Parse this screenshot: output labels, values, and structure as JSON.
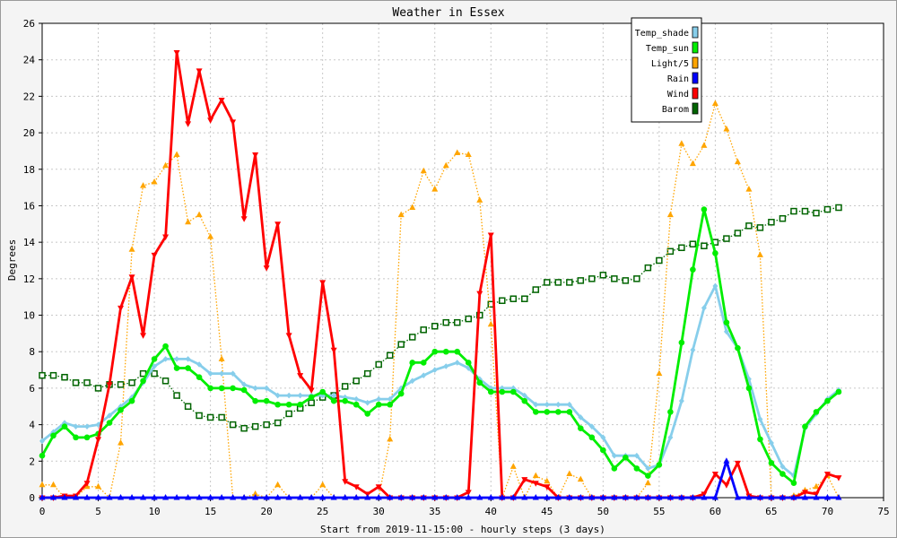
{
  "chart_data": {
    "type": "line",
    "title": "Weather in Essex",
    "xlabel": "Start from 2019-11-15:00 - hourly steps (3 days)",
    "ylabel": "Degrees",
    "xlim": [
      0,
      75
    ],
    "ylim": [
      0,
      26
    ],
    "xticks": [
      0,
      5,
      10,
      15,
      20,
      25,
      30,
      35,
      40,
      45,
      50,
      55,
      60,
      65,
      70,
      75
    ],
    "yticks": [
      0,
      2,
      4,
      6,
      8,
      10,
      12,
      14,
      16,
      18,
      20,
      22,
      24,
      26
    ],
    "grid": true,
    "legend_position": "top-right",
    "series": [
      {
        "name": "Temp_shade",
        "color": "#87ceeb",
        "style": "solid",
        "marker": "diamond",
        "values": [
          3.1,
          3.6,
          4.1,
          3.9,
          3.9,
          4.0,
          4.5,
          5.0,
          5.5,
          6.3,
          7.2,
          7.6,
          7.6,
          7.6,
          7.3,
          6.8,
          6.8,
          6.8,
          6.2,
          6.0,
          6.0,
          5.6,
          5.6,
          5.6,
          5.6,
          5.6,
          5.6,
          5.5,
          5.4,
          5.2,
          5.4,
          5.4,
          6.0,
          6.4,
          6.7,
          7.0,
          7.2,
          7.4,
          7.1,
          6.5,
          6.0,
          6.0,
          6.0,
          5.6,
          5.1,
          5.1,
          5.1,
          5.1,
          4.4,
          3.9,
          3.3,
          2.3,
          2.3,
          2.3,
          1.6,
          1.8,
          3.3,
          5.3,
          8.1,
          10.4,
          11.6,
          9.1,
          8.2,
          6.5,
          4.3,
          3.0,
          1.7,
          1.2,
          3.8,
          4.6,
          5.4,
          5.9
        ]
      },
      {
        "name": "Temp_sun",
        "color": "#00ee00",
        "style": "solid",
        "marker": "circle",
        "values": [
          2.3,
          3.4,
          3.9,
          3.3,
          3.3,
          3.5,
          4.1,
          4.8,
          5.3,
          6.4,
          7.6,
          8.3,
          7.1,
          7.1,
          6.6,
          6.0,
          6.0,
          6.0,
          5.9,
          5.3,
          5.3,
          5.1,
          5.1,
          5.1,
          5.5,
          5.8,
          5.3,
          5.3,
          5.1,
          4.6,
          5.1,
          5.1,
          5.7,
          7.4,
          7.4,
          8.0,
          8.0,
          8.0,
          7.4,
          6.3,
          5.8,
          5.8,
          5.8,
          5.3,
          4.7,
          4.7,
          4.7,
          4.7,
          3.8,
          3.3,
          2.6,
          1.6,
          2.2,
          1.6,
          1.2,
          1.8,
          4.7,
          8.5,
          12.5,
          15.8,
          13.4,
          9.6,
          8.2,
          6.0,
          3.2,
          1.9,
          1.3,
          0.8,
          3.9,
          4.7,
          5.3,
          5.8
        ]
      },
      {
        "name": "Light/5",
        "color": "#ffa500",
        "style": "dotted",
        "marker": "triangle",
        "values": [
          0.7,
          0.7,
          0,
          0,
          0.6,
          0.6,
          0,
          3.0,
          13.6,
          17.1,
          17.3,
          18.2,
          18.8,
          15.1,
          15.5,
          14.3,
          7.6,
          0,
          0,
          0.2,
          0,
          0.7,
          0,
          0,
          0,
          0.7,
          0,
          0,
          0,
          0,
          0,
          3.2,
          15.5,
          15.9,
          17.9,
          16.9,
          18.2,
          18.9,
          18.8,
          16.3,
          9.5,
          0,
          1.7,
          0,
          1.2,
          0.9,
          0,
          1.3,
          1.0,
          0,
          0,
          0,
          0,
          0,
          0.8,
          6.8,
          15.5,
          19.4,
          18.3,
          19.3,
          21.6,
          20.2,
          18.4,
          16.9,
          13.3,
          0,
          0,
          0.1,
          0.4,
          0.6,
          1.2,
          0
        ]
      },
      {
        "name": "Rain",
        "color": "#0000ff",
        "style": "solid",
        "marker": "triangle",
        "values": [
          0,
          0,
          0,
          0,
          0,
          0,
          0,
          0,
          0,
          0,
          0,
          0,
          0,
          0,
          0,
          0,
          0,
          0,
          0,
          0,
          0,
          0,
          0,
          0,
          0,
          0,
          0,
          0,
          0,
          0,
          0,
          0,
          0,
          0,
          0,
          0,
          0,
          0,
          0,
          0,
          0,
          0,
          0,
          0,
          0,
          0,
          0,
          0,
          0,
          0,
          0,
          0,
          0,
          0,
          0,
          0,
          0,
          0,
          0,
          0,
          0,
          2.0,
          0,
          0,
          0,
          0,
          0,
          0,
          0,
          0,
          0,
          0
        ]
      },
      {
        "name": "Wind",
        "color": "#ff0000",
        "style": "solid",
        "marker": "triangle-down",
        "values": [
          0,
          0,
          0.1,
          0.1,
          0.8,
          3.2,
          6.2,
          10.4,
          12.1,
          8.9,
          13.3,
          14.3,
          24.4,
          20.5,
          23.4,
          20.7,
          21.8,
          20.6,
          15.3,
          18.8,
          12.6,
          15.0,
          8.9,
          6.7,
          5.9,
          11.8,
          8.1,
          0.9,
          0.6,
          0.2,
          0.6,
          0,
          0,
          0,
          0,
          0,
          0,
          0,
          0.3,
          11.2,
          14.4,
          0,
          0,
          1.0,
          0.8,
          0.6,
          0,
          0,
          0,
          0,
          0,
          0,
          0,
          0,
          0,
          0,
          0,
          0,
          0,
          0.2,
          1.3,
          0.7,
          1.9,
          0.1,
          0,
          0,
          0,
          0,
          0.3,
          0.2,
          1.3,
          1.1
        ]
      },
      {
        "name": "Barom",
        "color": "#006400",
        "style": "dotted",
        "marker": "square",
        "values": [
          6.7,
          6.7,
          6.6,
          6.3,
          6.3,
          6.0,
          6.2,
          6.2,
          6.3,
          6.8,
          6.8,
          6.4,
          5.6,
          5.0,
          4.5,
          4.4,
          4.4,
          4.0,
          3.8,
          3.9,
          4.0,
          4.1,
          4.6,
          4.9,
          5.2,
          5.5,
          5.6,
          6.1,
          6.4,
          6.8,
          7.3,
          7.8,
          8.4,
          8.8,
          9.2,
          9.4,
          9.6,
          9.6,
          9.8,
          10.0,
          10.6,
          10.8,
          10.9,
          10.9,
          11.4,
          11.8,
          11.8,
          11.8,
          11.9,
          12.0,
          12.2,
          12.0,
          11.9,
          12.0,
          12.6,
          13.0,
          13.5,
          13.7,
          13.9,
          13.8,
          14.0,
          14.2,
          14.5,
          14.9,
          14.8,
          15.1,
          15.3,
          15.7,
          15.7,
          15.6,
          15.8,
          15.9
        ]
      }
    ]
  }
}
